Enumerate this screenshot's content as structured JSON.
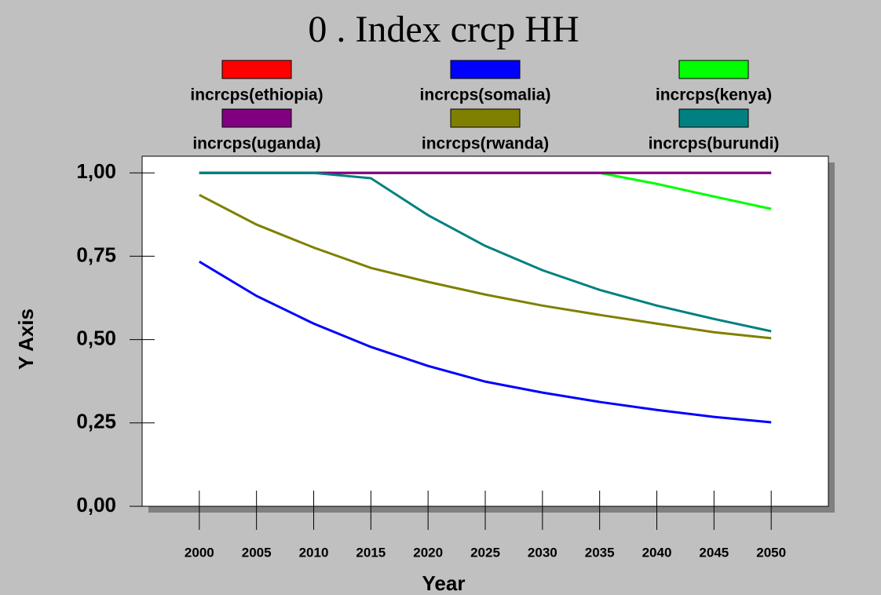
{
  "chart_data": {
    "type": "line",
    "title": "0 . Index crcp HH",
    "x_label": "Year",
    "y_label": "Y Axis",
    "x": [
      2000,
      2005,
      2010,
      2015,
      2020,
      2025,
      2030,
      2035,
      2040,
      2045,
      2050
    ],
    "xlim": [
      1995,
      2055
    ],
    "xticks": [
      2000,
      2005,
      2010,
      2015,
      2020,
      2025,
      2030,
      2035,
      2040,
      2045,
      2050
    ],
    "ylim": [
      0,
      1.05
    ],
    "yticks": [
      {
        "value": 0,
        "label": "0,00"
      },
      {
        "value": 0.25,
        "label": "0,25"
      },
      {
        "value": 0.5,
        "label": "0,50"
      },
      {
        "value": 0.75,
        "label": "0,75"
      },
      {
        "value": 1,
        "label": "1,00"
      }
    ],
    "series": [
      {
        "name": "incrcps(ethiopia)",
        "color": "#ff0000",
        "values": [
          1,
          1,
          1,
          1,
          1,
          1,
          1,
          1,
          1,
          1,
          1
        ]
      },
      {
        "name": "incrcps(somalia)",
        "color": "#0000ff",
        "values": [
          0.734,
          0.631,
          0.548,
          0.478,
          0.421,
          0.374,
          0.341,
          0.313,
          0.289,
          0.268,
          0.252
        ]
      },
      {
        "name": "incrcps(kenya)",
        "color": "#00ff00",
        "values": [
          1,
          1,
          1,
          1,
          1,
          1,
          1,
          1,
          0.967,
          0.929,
          0.892
        ]
      },
      {
        "name": "incrcps(uganda)",
        "color": "#800080",
        "values": [
          1,
          1,
          1,
          1,
          1,
          1,
          1,
          1,
          1,
          1,
          1
        ]
      },
      {
        "name": "incrcps(rwanda)",
        "color": "#808000",
        "values": [
          0.934,
          0.845,
          0.776,
          0.715,
          0.673,
          0.635,
          0.602,
          0.574,
          0.548,
          0.522,
          0.504
        ]
      },
      {
        "name": "incrcps(burundi)",
        "color": "#008080",
        "values": [
          1,
          1,
          1,
          0.984,
          0.873,
          0.781,
          0.708,
          0.649,
          0.602,
          0.562,
          0.525
        ]
      }
    ]
  }
}
